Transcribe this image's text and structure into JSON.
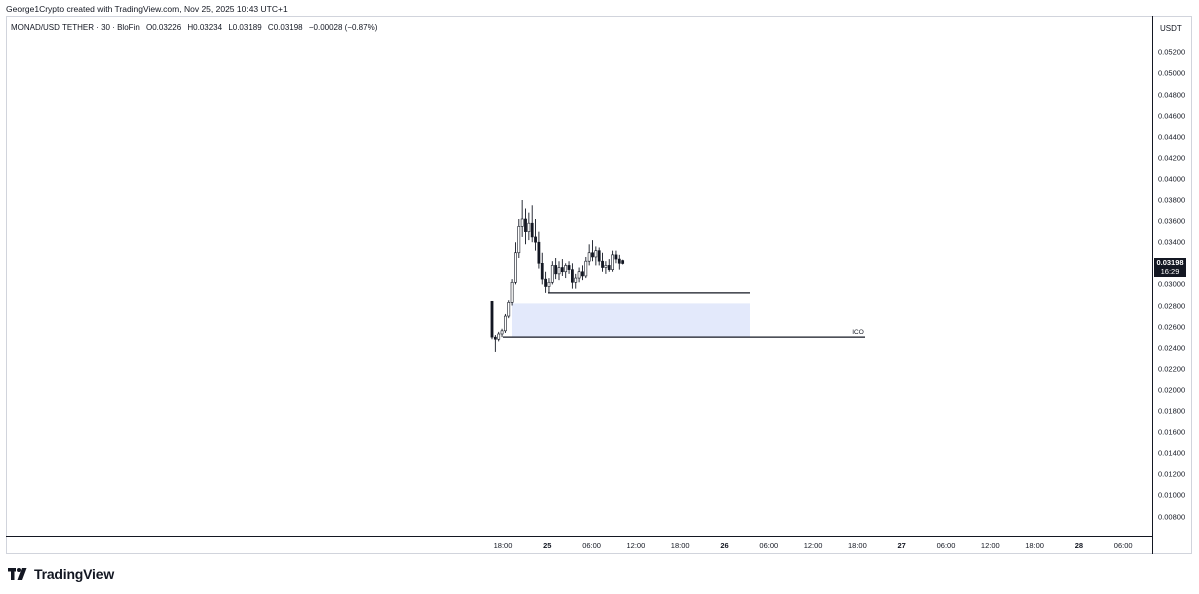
{
  "credit": "George1Crypto created with TradingView.com, Nov 25, 2025 10:43 UTC+1",
  "legend": {
    "symbol": "MONAD/USD TETHER · 30 · BloFin",
    "open": "O0.03226",
    "high": "H0.03234",
    "low": "L0.03189",
    "close": "C0.03198",
    "change": "−0.00028 (−0.87%)"
  },
  "price_axis": {
    "unit": "USDT",
    "labels": [
      "0.05200",
      "0.05000",
      "0.04800",
      "0.04600",
      "0.04400",
      "0.04200",
      "0.04000",
      "0.03800",
      "0.03600",
      "0.03400",
      "0.03000",
      "0.02800",
      "0.02600",
      "0.02400",
      "0.02200",
      "0.02000",
      "0.01800",
      "0.01600",
      "0.01400",
      "0.01200",
      "0.01000",
      "0.00800"
    ]
  },
  "current_price": {
    "price": "0.03198",
    "countdown": "16:29"
  },
  "time_axis": {
    "labels": [
      "18:00",
      "25",
      "06:00",
      "12:00",
      "18:00",
      "26",
      "06:00",
      "12:00",
      "18:00",
      "27",
      "06:00",
      "12:00",
      "18:00",
      "28",
      "06:00"
    ],
    "bold": [
      false,
      true,
      false,
      false,
      false,
      true,
      false,
      false,
      false,
      true,
      false,
      false,
      false,
      true,
      false
    ]
  },
  "annotations": {
    "ico_label": "ICO"
  },
  "colors": {
    "zone": "#e3e9fb",
    "line": "#131722",
    "candle": "#131722"
  },
  "logo": {
    "text": "TradingView"
  },
  "chart_data": {
    "type": "candlestick",
    "ohlc": [
      {
        "o": 0.0284,
        "h": 0.0284,
        "l": 0.0248,
        "c": 0.025
      },
      {
        "o": 0.025,
        "h": 0.0252,
        "l": 0.0236,
        "c": 0.0248
      },
      {
        "o": 0.0248,
        "h": 0.0255,
        "l": 0.0246,
        "c": 0.0253
      },
      {
        "o": 0.0253,
        "h": 0.0258,
        "l": 0.025,
        "c": 0.0256
      },
      {
        "o": 0.0256,
        "h": 0.0272,
        "l": 0.0254,
        "c": 0.027
      },
      {
        "o": 0.027,
        "h": 0.0285,
        "l": 0.0268,
        "c": 0.0283
      },
      {
        "o": 0.0283,
        "h": 0.0305,
        "l": 0.028,
        "c": 0.0302
      },
      {
        "o": 0.0302,
        "h": 0.034,
        "l": 0.03,
        "c": 0.033
      },
      {
        "o": 0.033,
        "h": 0.0362,
        "l": 0.0325,
        "c": 0.0355
      },
      {
        "o": 0.0355,
        "h": 0.038,
        "l": 0.0345,
        "c": 0.0362
      },
      {
        "o": 0.0362,
        "h": 0.0372,
        "l": 0.0338,
        "c": 0.035
      },
      {
        "o": 0.035,
        "h": 0.0368,
        "l": 0.0342,
        "c": 0.0358
      },
      {
        "o": 0.0358,
        "h": 0.0375,
        "l": 0.034,
        "c": 0.0345
      },
      {
        "o": 0.0345,
        "h": 0.0362,
        "l": 0.0332,
        "c": 0.034
      },
      {
        "o": 0.034,
        "h": 0.035,
        "l": 0.0315,
        "c": 0.032
      },
      {
        "o": 0.032,
        "h": 0.033,
        "l": 0.03,
        "c": 0.0305
      },
      {
        "o": 0.0305,
        "h": 0.0312,
        "l": 0.0292,
        "c": 0.0298
      },
      {
        "o": 0.0298,
        "h": 0.0306,
        "l": 0.0292,
        "c": 0.0302
      },
      {
        "o": 0.0302,
        "h": 0.0322,
        "l": 0.03,
        "c": 0.0318
      },
      {
        "o": 0.0318,
        "h": 0.0325,
        "l": 0.0305,
        "c": 0.031
      },
      {
        "o": 0.031,
        "h": 0.0322,
        "l": 0.0304,
        "c": 0.0316
      },
      {
        "o": 0.0316,
        "h": 0.0324,
        "l": 0.0308,
        "c": 0.0312
      },
      {
        "o": 0.0312,
        "h": 0.032,
        "l": 0.0306,
        "c": 0.0318
      },
      {
        "o": 0.0318,
        "h": 0.0322,
        "l": 0.031,
        "c": 0.0314
      },
      {
        "o": 0.0314,
        "h": 0.032,
        "l": 0.0296,
        "c": 0.0302
      },
      {
        "o": 0.0302,
        "h": 0.031,
        "l": 0.0296,
        "c": 0.0306
      },
      {
        "o": 0.0306,
        "h": 0.0316,
        "l": 0.0302,
        "c": 0.0312
      },
      {
        "o": 0.0312,
        "h": 0.0318,
        "l": 0.0304,
        "c": 0.0308
      },
      {
        "o": 0.0308,
        "h": 0.0326,
        "l": 0.0306,
        "c": 0.0322
      },
      {
        "o": 0.0322,
        "h": 0.0338,
        "l": 0.0318,
        "c": 0.033
      },
      {
        "o": 0.033,
        "h": 0.0342,
        "l": 0.0322,
        "c": 0.0326
      },
      {
        "o": 0.0326,
        "h": 0.0336,
        "l": 0.0318,
        "c": 0.0332
      },
      {
        "o": 0.0332,
        "h": 0.0335,
        "l": 0.0318,
        "c": 0.0322
      },
      {
        "o": 0.0322,
        "h": 0.033,
        "l": 0.0312,
        "c": 0.0316
      },
      {
        "o": 0.0316,
        "h": 0.0322,
        "l": 0.031,
        "c": 0.0318
      },
      {
        "o": 0.0318,
        "h": 0.0324,
        "l": 0.0312,
        "c": 0.0314
      },
      {
        "o": 0.0314,
        "h": 0.0332,
        "l": 0.0312,
        "c": 0.0328
      },
      {
        "o": 0.0328,
        "h": 0.0332,
        "l": 0.032,
        "c": 0.0324
      },
      {
        "o": 0.0324,
        "h": 0.0328,
        "l": 0.0314,
        "c": 0.032
      },
      {
        "o": 0.03226,
        "h": 0.03234,
        "l": 0.03189,
        "c": 0.03198
      }
    ],
    "zone": {
      "top": 0.0282,
      "bottom": 0.025
    },
    "lines": [
      {
        "price": 0.0292
      },
      {
        "price": 0.025,
        "label": "ICO"
      }
    ],
    "ylim": [
      0.007,
      0.0538
    ]
  }
}
